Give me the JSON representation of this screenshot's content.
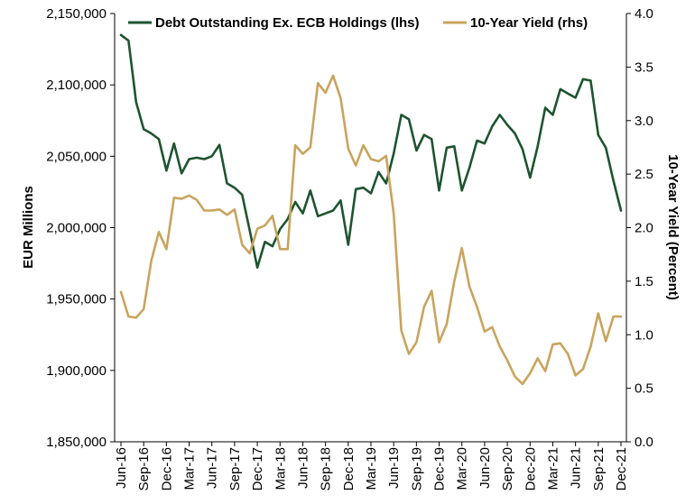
{
  "chart_data": {
    "type": "line",
    "title": "",
    "xlabel": "",
    "ylabel_left": "EUR Millions",
    "ylabel_right": "10-Year Yield (Percent)",
    "ylim_left": [
      1850000,
      2150000
    ],
    "ylim_right": [
      0.0,
      4.0
    ],
    "yticks_left": [
      "1,850,000",
      "1,900,000",
      "1,950,000",
      "2,000,000",
      "2,050,000",
      "2,100,000",
      "2,150,000"
    ],
    "yticks_right": [
      "0.0",
      "0.5",
      "1.0",
      "1.5",
      "2.0",
      "2.5",
      "3.0",
      "3.5",
      "4.0"
    ],
    "xticks": [
      "Jun-16",
      "Sep-16",
      "Dec-16",
      "Mar-17",
      "Jun-17",
      "Sep-17",
      "Dec-17",
      "Mar-18",
      "Jun-18",
      "Sep-18",
      "Dec-18",
      "Mar-19",
      "Jun-19",
      "Sep-19",
      "Dec-19",
      "Mar-20",
      "Jun-20",
      "Sep-20",
      "Dec-20",
      "Mar-21",
      "Jun-21",
      "Sep-21",
      "Dec-21"
    ],
    "x": [
      "Jun-16",
      "Jul-16",
      "Aug-16",
      "Sep-16",
      "Oct-16",
      "Nov-16",
      "Dec-16",
      "Jan-17",
      "Feb-17",
      "Mar-17",
      "Apr-17",
      "May-17",
      "Jun-17",
      "Jul-17",
      "Aug-17",
      "Sep-17",
      "Oct-17",
      "Nov-17",
      "Dec-17",
      "Jan-18",
      "Feb-18",
      "Mar-18",
      "Apr-18",
      "May-18",
      "Jun-18",
      "Jul-18",
      "Aug-18",
      "Sep-18",
      "Oct-18",
      "Nov-18",
      "Dec-18",
      "Jan-19",
      "Feb-19",
      "Mar-19",
      "Apr-19",
      "May-19",
      "Jun-19",
      "Jul-19",
      "Aug-19",
      "Sep-19",
      "Oct-19",
      "Nov-19",
      "Dec-19",
      "Jan-20",
      "Feb-20",
      "Mar-20",
      "Apr-20",
      "May-20",
      "Jun-20",
      "Jul-20",
      "Aug-20",
      "Sep-20",
      "Oct-20",
      "Nov-20",
      "Dec-20",
      "Jan-21",
      "Feb-21",
      "Mar-21",
      "Apr-21",
      "May-21",
      "Jun-21",
      "Jul-21",
      "Aug-21",
      "Sep-21",
      "Oct-21",
      "Nov-21",
      "Dec-21"
    ],
    "legend_position": "top",
    "grid": false,
    "series": [
      {
        "name": "Debt Outstanding Ex. ECB Holdings (lhs)",
        "axis": "left",
        "color": "#1e5430",
        "values": [
          2135000,
          2131000,
          2088000,
          2069000,
          2066000,
          2062000,
          2040000,
          2059000,
          2038000,
          2048000,
          2049000,
          2048000,
          2050000,
          2058000,
          2031000,
          2028000,
          2023000,
          1998000,
          1972000,
          1990000,
          1987000,
          1999000,
          2006000,
          2018000,
          2010000,
          2026000,
          2008000,
          2010000,
          2012000,
          2019000,
          1988000,
          2027000,
          2028000,
          2024000,
          2039000,
          2031000,
          2052000,
          2079000,
          2076000,
          2054000,
          2065000,
          2062000,
          2026000,
          2056000,
          2057000,
          2026000,
          2042000,
          2061000,
          2059000,
          2071000,
          2079000,
          2072000,
          2066000,
          2055000,
          2035000,
          2057000,
          2084000,
          2079000,
          2097000,
          2094000,
          2091000,
          2104000,
          2103000,
          2065000,
          2056000,
          2033000,
          2012000
        ]
      },
      {
        "name": "10-Year Yield (rhs)",
        "axis": "right",
        "color": "#c8a45e",
        "values": [
          1.4,
          1.17,
          1.16,
          1.24,
          1.69,
          1.96,
          1.8,
          2.28,
          2.27,
          2.3,
          2.26,
          2.16,
          2.16,
          2.17,
          2.12,
          2.17,
          1.84,
          1.76,
          1.99,
          2.02,
          2.11,
          1.8,
          1.8,
          2.77,
          2.69,
          2.75,
          3.35,
          3.26,
          3.42,
          3.21,
          2.74,
          2.58,
          2.77,
          2.64,
          2.62,
          2.67,
          2.13,
          1.04,
          0.82,
          0.93,
          1.26,
          1.41,
          0.93,
          1.1,
          1.5,
          1.81,
          1.45,
          1.26,
          1.03,
          1.07,
          0.89,
          0.76,
          0.61,
          0.54,
          0.64,
          0.78,
          0.66,
          0.91,
          0.92,
          0.82,
          0.62,
          0.68,
          0.89,
          1.2,
          0.94,
          1.17,
          1.17
        ]
      }
    ]
  }
}
